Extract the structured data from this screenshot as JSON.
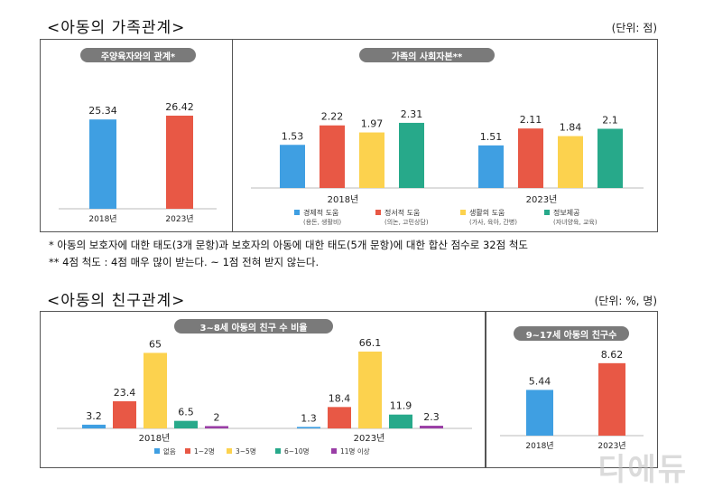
{
  "family": {
    "title": "<아동의 가족관계>",
    "unit": "(단위: 점)",
    "caregiver": {
      "title": "주양육자와의 관계*",
      "categories": [
        "2018년",
        "2023년"
      ],
      "values": [
        "25.34",
        "26.42"
      ]
    },
    "social": {
      "title": "가족의 사회자본**",
      "groups": [
        "2018년",
        "2023년"
      ],
      "values_2018": [
        "1.53",
        "2.22",
        "1.97",
        "2.31"
      ],
      "values_2023": [
        "1.51",
        "2.11",
        "1.84",
        "2.1"
      ],
      "legend": [
        {
          "name": "경제적 도움",
          "sub": "(용돈, 생활비)"
        },
        {
          "name": "정서적 도움",
          "sub": "(의논, 고민상담)"
        },
        {
          "name": "생활의 도움",
          "sub": "(가사, 육아, 간병)"
        },
        {
          "name": "정보제공",
          "sub": "(자녀양육, 교육)"
        }
      ]
    }
  },
  "notes": {
    "line1": "* 아동의 보호자에 대한 태도(3개 문항)과 보호자의 아동에 대한 태도(5개 문항)에 대한 합산 점수로 32점 척도",
    "line2": "** 4점 척도 : 4점 매우 많이 받는다. ~ 1점 전혀 받지 않는다."
  },
  "friends": {
    "title": "<아동의 친구관계>",
    "unit": "(단위: %, 명)",
    "ratio": {
      "title": "3~8세 아동의 친구 수 비율",
      "groups": [
        "2018년",
        "2023년"
      ],
      "values_2018": [
        "3.2",
        "23.4",
        "65",
        "6.5",
        "2"
      ],
      "values_2023": [
        "1.3",
        "18.4",
        "66.1",
        "11.9",
        "2.3"
      ],
      "legend": [
        "없음",
        "1~2명",
        "3~5명",
        "6~10명",
        "11명 이상"
      ]
    },
    "count": {
      "title": "9~17세 아동의 친구수",
      "categories": [
        "2018년",
        "2023년"
      ],
      "values": [
        "5.44",
        "8.62"
      ]
    }
  },
  "watermark": "디에듀",
  "colors": {
    "blue": "#3f9fe2",
    "red": "#e85845",
    "yellow": "#fcd24e",
    "teal": "#27a98a",
    "purple": "#9a3ea6",
    "pill": "#7a7a7a"
  },
  "chart_data": [
    {
      "type": "bar",
      "title": "주양육자와의 관계*",
      "categories": [
        "2018년",
        "2023년"
      ],
      "values": [
        25.34,
        26.42
      ],
      "ylim": [
        0,
        30
      ]
    },
    {
      "type": "bar",
      "title": "가족의 사회자본**",
      "categories": [
        "2018년",
        "2023년"
      ],
      "series": [
        {
          "name": "경제적 도움 (용돈, 생활비)",
          "values": [
            1.53,
            1.51
          ]
        },
        {
          "name": "정서적 도움 (의논, 고민상담)",
          "values": [
            2.22,
            2.11
          ]
        },
        {
          "name": "생활의 도움 (가사, 육아, 간병)",
          "values": [
            1.97,
            1.84
          ]
        },
        {
          "name": "정보제공 (자녀양육, 교육)",
          "values": [
            2.31,
            2.1
          ]
        }
      ],
      "ylim": [
        0,
        2.5
      ],
      "legend": "bottom"
    },
    {
      "type": "bar",
      "title": "3~8세 아동의 친구 수 비율",
      "categories": [
        "2018년",
        "2023년"
      ],
      "series": [
        {
          "name": "없음",
          "values": [
            3.2,
            1.3
          ]
        },
        {
          "name": "1~2명",
          "values": [
            23.4,
            18.4
          ]
        },
        {
          "name": "3~5명",
          "values": [
            65,
            66.1
          ]
        },
        {
          "name": "6~10명",
          "values": [
            6.5,
            11.9
          ]
        },
        {
          "name": "11명 이상",
          "values": [
            2,
            2.3
          ]
        }
      ],
      "ylim": [
        0,
        70
      ],
      "legend": "bottom"
    },
    {
      "type": "bar",
      "title": "9~17세 아동의 친구수",
      "categories": [
        "2018년",
        "2023년"
      ],
      "values": [
        5.44,
        8.62
      ],
      "ylim": [
        0,
        10
      ]
    }
  ]
}
